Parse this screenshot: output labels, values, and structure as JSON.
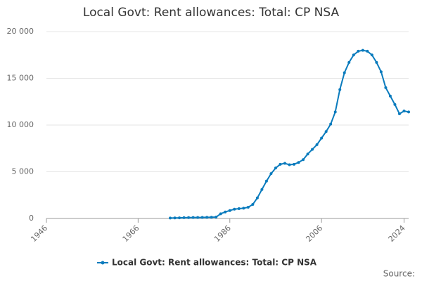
{
  "chart_data": {
    "type": "line",
    "title": "Local Govt: Rent allowances: Total: CP NSA",
    "source": "Source:",
    "x": [
      1973,
      1974,
      1975,
      1976,
      1977,
      1978,
      1979,
      1980,
      1981,
      1982,
      1983,
      1984,
      1985,
      1986,
      1987,
      1988,
      1989,
      1990,
      1991,
      1992,
      1993,
      1994,
      1995,
      1996,
      1997,
      1998,
      1999,
      2000,
      2001,
      2002,
      2003,
      2004,
      2005,
      2006,
      2007,
      2008,
      2009,
      2010,
      2011,
      2012,
      2013,
      2014,
      2015,
      2016,
      2017,
      2018,
      2019,
      2020,
      2021,
      2022,
      2023,
      2024,
      2025
    ],
    "series": [
      {
        "name": "Local Govt: Rent allowances: Total: CP NSA",
        "color": "#0a7bbd",
        "values": [
          50,
          60,
          70,
          80,
          90,
          100,
          100,
          110,
          120,
          130,
          150,
          500,
          700,
          850,
          1000,
          1050,
          1100,
          1200,
          1500,
          2200,
          3100,
          4000,
          4800,
          5400,
          5800,
          5900,
          5750,
          5800,
          6000,
          6300,
          6900,
          7400,
          7900,
          8600,
          9300,
          10100,
          11400,
          13800,
          15600,
          16700,
          17500,
          17900,
          18000,
          17900,
          17500,
          16700,
          15700,
          14000,
          13100,
          12200,
          11200,
          11500,
          11400
        ]
      }
    ],
    "xlim": [
      1946,
      2025
    ],
    "xticks": [
      1946,
      1966,
      1986,
      2006,
      2024
    ],
    "ylim": [
      0,
      20000
    ],
    "yticks": [
      0,
      {
        "value": 5000,
        "label": "5 000"
      },
      {
        "value": 10000,
        "label": "10 000"
      },
      {
        "value": 15000,
        "label": "15 000"
      },
      {
        "value": 20000,
        "label": "20 000"
      }
    ],
    "grid": true
  }
}
